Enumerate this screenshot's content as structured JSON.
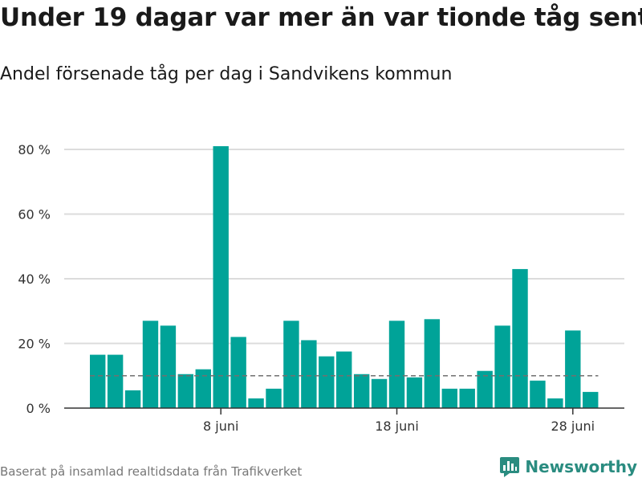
{
  "title": "Under 19 dagar var mer än var tionde tåg sent",
  "subtitle": "Andel försenade tåg per dag i Sandvikens kommun",
  "source": "Baserat på insamlad realtidsdata från Trafikverket",
  "brand": "Newsworthy",
  "colors": {
    "bar": "#00a398",
    "grid": "#dcdcdc",
    "axis": "#333333",
    "reference": "#707070",
    "brand": "#2a8c80"
  },
  "chart_data": {
    "type": "bar",
    "x_start": "2024-06-01",
    "values": [
      16.5,
      16.5,
      5.5,
      27,
      25.5,
      10.5,
      12,
      81,
      22,
      3,
      6,
      27,
      21,
      16,
      17.5,
      10.5,
      9,
      27,
      9.5,
      27.5,
      6,
      6,
      11.5,
      25.5,
      43,
      8.5,
      3,
      24,
      5
    ],
    "x_ticks": [
      "8 juni",
      "18 juni",
      "28 juni"
    ],
    "y_ticks": [
      "0 %",
      "20 %",
      "40 %",
      "60 %",
      "80 %"
    ],
    "ylim": [
      0,
      80
    ],
    "reference_line": 10,
    "grid": true,
    "legend": "none"
  }
}
